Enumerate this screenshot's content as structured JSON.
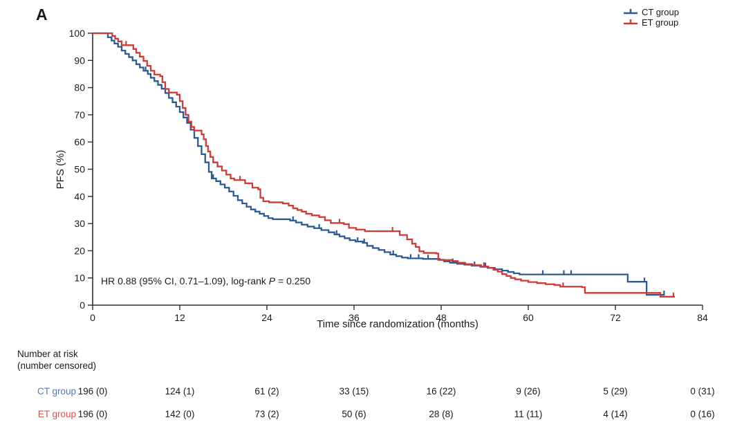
{
  "figure": {
    "panel_label": "A"
  },
  "chart_data": {
    "type": "line",
    "subtype": "kaplan-meier-step",
    "title": "",
    "xlabel": "Time since randomization (months)",
    "ylabel": "PFS (%)",
    "xlim": [
      0,
      84
    ],
    "ylim": [
      0,
      100
    ],
    "x_ticks": [
      0,
      12,
      24,
      36,
      48,
      60,
      72,
      84
    ],
    "y_ticks": [
      0,
      10,
      20,
      30,
      40,
      50,
      60,
      70,
      80,
      90,
      100
    ],
    "grid": false,
    "legend_position": "top-right",
    "annotation": {
      "prefix": "HR 0.88 (95% CI, 0.71–1.09), log-rank ",
      "italic": "P",
      "suffix": " = 0.250"
    },
    "legend": [
      {
        "name": "CT group",
        "color": "#2b5a94"
      },
      {
        "name": "ET group",
        "color": "#cf3b34"
      }
    ],
    "series": [
      {
        "name": "CT group",
        "color": "#2b5a94",
        "steps": [
          [
            0,
            100
          ],
          [
            1.8,
            100
          ],
          [
            2.1,
            98.5
          ],
          [
            2.6,
            97.3
          ],
          [
            3,
            96.2
          ],
          [
            3.5,
            95
          ],
          [
            4,
            93.6
          ],
          [
            4.5,
            92.4
          ],
          [
            5,
            91.2
          ],
          [
            5.5,
            90
          ],
          [
            6,
            88.6
          ],
          [
            6.5,
            87.4
          ],
          [
            7,
            86.2
          ],
          [
            7.6,
            85
          ],
          [
            8,
            83.6
          ],
          [
            8.5,
            82.4
          ],
          [
            9,
            81
          ],
          [
            9.5,
            79.6
          ],
          [
            10,
            78
          ],
          [
            10.5,
            76.2
          ],
          [
            11,
            74.6
          ],
          [
            11.5,
            73
          ],
          [
            12,
            71
          ],
          [
            12.5,
            69
          ],
          [
            13,
            67
          ],
          [
            13.5,
            64.5
          ],
          [
            14,
            61.5
          ],
          [
            14.5,
            58.5
          ],
          [
            15,
            55.5
          ],
          [
            15.5,
            52.5
          ],
          [
            16,
            49
          ],
          [
            16.4,
            46.6
          ],
          [
            17,
            45.6
          ],
          [
            17.6,
            44.4
          ],
          [
            18.2,
            43.2
          ],
          [
            18.8,
            41.8
          ],
          [
            19.4,
            40.2
          ],
          [
            20,
            38.6
          ],
          [
            20.6,
            37.4
          ],
          [
            21.2,
            36.2
          ],
          [
            21.8,
            35.2
          ],
          [
            22.4,
            34.4
          ],
          [
            23,
            33.6
          ],
          [
            23.6,
            32.8
          ],
          [
            24.2,
            32
          ],
          [
            24.8,
            31.6
          ],
          [
            26.5,
            31.6
          ],
          [
            27.2,
            31.1
          ],
          [
            28,
            30.4
          ],
          [
            28.8,
            29.6
          ],
          [
            29.6,
            28.9
          ],
          [
            30.5,
            28.3
          ],
          [
            31.5,
            27.6
          ],
          [
            32.5,
            26.8
          ],
          [
            33.3,
            26
          ],
          [
            34,
            25.3
          ],
          [
            34.7,
            24.6
          ],
          [
            35.4,
            23.9
          ],
          [
            36.2,
            23.4
          ],
          [
            37.2,
            22.9
          ],
          [
            37.8,
            21.8
          ],
          [
            38.6,
            21
          ],
          [
            39.4,
            20.3
          ],
          [
            40.2,
            19.5
          ],
          [
            41,
            18.6
          ],
          [
            41.8,
            18
          ],
          [
            42.6,
            17.5
          ],
          [
            43.4,
            17.2
          ],
          [
            45.5,
            17
          ],
          [
            47.8,
            16.7
          ],
          [
            48.4,
            16.1
          ],
          [
            49.2,
            15.6
          ],
          [
            50.2,
            15.2
          ],
          [
            51.2,
            14.9
          ],
          [
            52.2,
            14.5
          ],
          [
            53.4,
            14.1
          ],
          [
            54.4,
            13.7
          ],
          [
            55.4,
            13.2
          ],
          [
            56.4,
            12.7
          ],
          [
            57.2,
            12.2
          ],
          [
            58,
            11.7
          ],
          [
            58.8,
            11.3
          ],
          [
            73.6,
            11.3
          ],
          [
            73.7,
            8.6
          ],
          [
            76.2,
            8.6
          ],
          [
            76.3,
            3.8
          ],
          [
            78.8,
            3.8
          ]
        ],
        "censor_marks": [
          [
            7.3,
            86.2
          ],
          [
            16.6,
            46.6
          ],
          [
            27.6,
            31.1
          ],
          [
            31.2,
            28.3
          ],
          [
            33.6,
            26
          ],
          [
            36.5,
            23.4
          ],
          [
            37.4,
            22.9
          ],
          [
            41.4,
            18.6
          ],
          [
            43.8,
            17.2
          ],
          [
            44.9,
            17.2
          ],
          [
            46.2,
            17
          ],
          [
            49.6,
            15.6
          ],
          [
            52.6,
            14.5
          ],
          [
            54.1,
            14.1
          ],
          [
            62,
            11.3
          ],
          [
            64.9,
            11.3
          ],
          [
            65.9,
            11.3
          ],
          [
            76,
            8.6
          ],
          [
            78.7,
            3.8
          ]
        ]
      },
      {
        "name": "ET group",
        "color": "#cf3b34",
        "steps": [
          [
            0,
            100
          ],
          [
            2.3,
            100
          ],
          [
            2.7,
            99
          ],
          [
            3.1,
            98
          ],
          [
            3.5,
            97
          ],
          [
            4,
            95.6
          ],
          [
            5.2,
            95.6
          ],
          [
            5.6,
            94.2
          ],
          [
            6,
            92.8
          ],
          [
            6.5,
            91.4
          ],
          [
            7,
            89.8
          ],
          [
            7.5,
            88
          ],
          [
            8,
            86.2
          ],
          [
            8.5,
            84.8
          ],
          [
            9.3,
            84.2
          ],
          [
            9.6,
            82
          ],
          [
            10,
            79.5
          ],
          [
            10.5,
            78.2
          ],
          [
            11.6,
            77.4
          ],
          [
            12,
            75
          ],
          [
            12.4,
            72.5
          ],
          [
            12.8,
            70
          ],
          [
            13.2,
            67.5
          ],
          [
            13.6,
            65.5
          ],
          [
            14,
            64.2
          ],
          [
            15,
            62.8
          ],
          [
            15.3,
            61
          ],
          [
            15.6,
            58.5
          ],
          [
            15.9,
            56.5
          ],
          [
            16.2,
            54.5
          ],
          [
            16.6,
            52.5
          ],
          [
            17.2,
            51
          ],
          [
            17.8,
            49.5
          ],
          [
            18.4,
            48
          ],
          [
            19,
            46.6
          ],
          [
            19.5,
            46
          ],
          [
            21,
            44.8
          ],
          [
            22,
            43.2
          ],
          [
            22.8,
            42.6
          ],
          [
            23.1,
            39.5
          ],
          [
            23.5,
            38.2
          ],
          [
            24.3,
            37.8
          ],
          [
            26.2,
            37.4
          ],
          [
            27,
            36.6
          ],
          [
            27.6,
            35.6
          ],
          [
            28.2,
            35
          ],
          [
            28.8,
            34.4
          ],
          [
            29.4,
            33.6
          ],
          [
            30.2,
            33
          ],
          [
            31.2,
            32.4
          ],
          [
            32,
            31.2
          ],
          [
            32.8,
            30.2
          ],
          [
            34.6,
            29.8
          ],
          [
            35.3,
            28.4
          ],
          [
            36.3,
            27.8
          ],
          [
            37.5,
            27.2
          ],
          [
            41.8,
            27.2
          ],
          [
            42.3,
            25.8
          ],
          [
            43.3,
            24.2
          ],
          [
            44,
            22.6
          ],
          [
            44.5,
            21.4
          ],
          [
            45,
            19.8
          ],
          [
            45.6,
            19.2
          ],
          [
            47.3,
            19
          ],
          [
            47.6,
            16.6
          ],
          [
            49.5,
            16.2
          ],
          [
            50.3,
            15.6
          ],
          [
            51.3,
            15.1
          ],
          [
            52.3,
            14.7
          ],
          [
            53.5,
            14.2
          ],
          [
            54.5,
            13.7
          ],
          [
            55.2,
            13
          ],
          [
            55.8,
            12.3
          ],
          [
            56.4,
            11.4
          ],
          [
            57,
            10.7
          ],
          [
            57.6,
            10
          ],
          [
            58.2,
            9.5
          ],
          [
            59,
            9
          ],
          [
            60,
            8.5
          ],
          [
            61.2,
            8.1
          ],
          [
            62.4,
            7.7
          ],
          [
            63.6,
            7.4
          ],
          [
            64.4,
            6.8
          ],
          [
            67.4,
            6.6
          ],
          [
            67.8,
            4.5
          ],
          [
            77.8,
            4.5
          ],
          [
            78.2,
            3.1
          ],
          [
            80.2,
            3.1
          ]
        ],
        "censor_marks": [
          [
            4.6,
            95.6
          ],
          [
            20.3,
            46
          ],
          [
            34,
            30.2
          ],
          [
            41.3,
            27.2
          ],
          [
            53.9,
            14.2
          ],
          [
            64.8,
            6.8
          ],
          [
            80,
            3.1
          ]
        ]
      }
    ]
  },
  "risk_table": {
    "header_line1": "Number at risk",
    "header_line2": "(number censored)",
    "time_points": [
      0,
      12,
      24,
      36,
      48,
      60,
      72,
      84
    ],
    "rows": [
      {
        "label": "CT group",
        "color": "#4a7cb8",
        "values": [
          "196 (0)",
          "124 (1)",
          "61 (2)",
          "33 (15)",
          "16 (22)",
          "9 (26)",
          "5 (29)",
          "0 (31)"
        ]
      },
      {
        "label": "ET group",
        "color": "#d2524c",
        "values": [
          "196 (0)",
          "142 (0)",
          "73 (2)",
          "50 (6)",
          "28 (8)",
          "11 (11)",
          "4 (14)",
          "0 (16)"
        ]
      }
    ]
  }
}
